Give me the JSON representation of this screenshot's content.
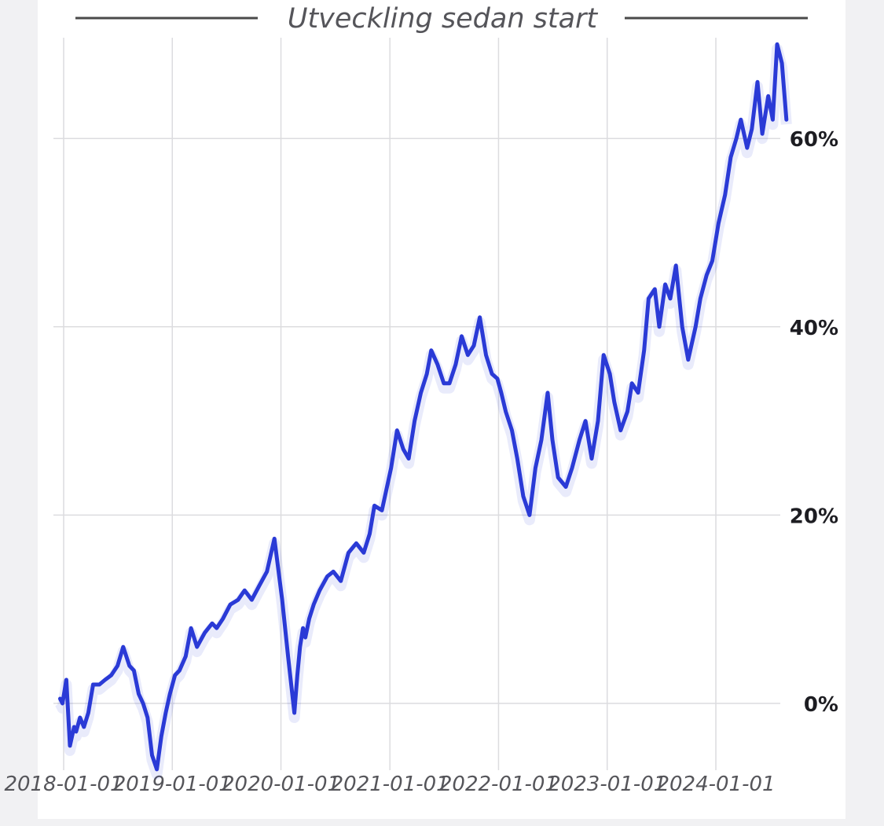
{
  "chart_data": {
    "type": "line",
    "title": "Utveckling sedan start",
    "x_tick_labels": [
      "2018-01-01",
      "2019-01-01",
      "2020-01-01",
      "2021-01-01",
      "2022-01-01",
      "2023-01-01",
      "2024-01-01"
    ],
    "y_tick_labels": [
      "0%",
      "20%",
      "40%",
      "60%"
    ],
    "y_ticks": [
      0,
      20,
      40,
      60
    ],
    "ylim": [
      -7,
      71
    ],
    "xlim": [
      "2017-12-20",
      "2024-09-15"
    ],
    "grid": true,
    "colors": {
      "line": "#2a3ad6",
      "grid": "#dcdcdf"
    },
    "series": [
      {
        "x": [
          "2017-12-20",
          "2017-12-28",
          "2018-01-10",
          "2018-01-22",
          "2018-02-05",
          "2018-02-12",
          "2018-02-25",
          "2018-03-10",
          "2018-03-25",
          "2018-04-10",
          "2018-05-01",
          "2018-05-20",
          "2018-06-10",
          "2018-07-01",
          "2018-07-20",
          "2018-08-10",
          "2018-08-25",
          "2018-09-10",
          "2018-09-25",
          "2018-10-10",
          "2018-10-25",
          "2018-11-10",
          "2018-11-25",
          "2018-12-10",
          "2018-12-24",
          "2019-01-10",
          "2019-01-25",
          "2019-02-15",
          "2019-03-05",
          "2019-03-25",
          "2019-04-20",
          "2019-05-15",
          "2019-05-30",
          "2019-06-20",
          "2019-07-15",
          "2019-08-10",
          "2019-09-01",
          "2019-09-25",
          "2019-10-20",
          "2019-11-15",
          "2019-12-10",
          "2020-01-05",
          "2020-01-25",
          "2020-02-15",
          "2020-02-25",
          "2020-03-05",
          "2020-03-15",
          "2020-03-23",
          "2020-04-05",
          "2020-04-20",
          "2020-05-10",
          "2020-06-05",
          "2020-06-25",
          "2020-07-20",
          "2020-08-15",
          "2020-09-10",
          "2020-10-05",
          "2020-10-25",
          "2020-11-10",
          "2020-12-05",
          "2021-01-05",
          "2021-01-25",
          "2021-02-15",
          "2021-03-05",
          "2021-03-25",
          "2021-04-15",
          "2021-05-05",
          "2021-05-20",
          "2021-06-10",
          "2021-07-01",
          "2021-07-20",
          "2021-08-10",
          "2021-08-30",
          "2021-09-20",
          "2021-10-10",
          "2021-10-30",
          "2021-11-20",
          "2021-12-10",
          "2021-12-28",
          "2022-01-10",
          "2022-01-25",
          "2022-02-15",
          "2022-03-05",
          "2022-03-25",
          "2022-04-15",
          "2022-05-05",
          "2022-05-25",
          "2022-06-15",
          "2022-07-01",
          "2022-07-20",
          "2022-08-15",
          "2022-09-05",
          "2022-09-30",
          "2022-10-20",
          "2022-11-10",
          "2022-12-01",
          "2022-12-20",
          "2023-01-10",
          "2023-01-25",
          "2023-02-15",
          "2023-03-10",
          "2023-03-25",
          "2023-04-15",
          "2023-05-05",
          "2023-05-20",
          "2023-06-10",
          "2023-06-25",
          "2023-07-15",
          "2023-08-01",
          "2023-08-20",
          "2023-09-10",
          "2023-09-30",
          "2023-10-25",
          "2023-11-10",
          "2023-12-01",
          "2023-12-20",
          "2024-01-10",
          "2024-02-01",
          "2024-02-20",
          "2024-03-10",
          "2024-03-25",
          "2024-04-15",
          "2024-05-01",
          "2024-05-20",
          "2024-06-05",
          "2024-06-25",
          "2024-07-10",
          "2024-07-25",
          "2024-08-10",
          "2024-08-25"
        ],
        "y": [
          0.5,
          0.0,
          2.5,
          -4.5,
          -2.5,
          -3.0,
          -1.5,
          -2.5,
          -1.0,
          2.0,
          2.0,
          2.5,
          3.0,
          4.0,
          6.0,
          4.0,
          3.5,
          1.0,
          0.0,
          -1.5,
          -5.5,
          -7.0,
          -3.5,
          -1.0,
          1.0,
          3.0,
          3.5,
          5.0,
          8.0,
          6.0,
          7.5,
          8.5,
          8.0,
          9.0,
          10.5,
          11.0,
          12.0,
          11.0,
          12.5,
          14.0,
          17.5,
          11.0,
          5.0,
          -1.0,
          3.0,
          6.0,
          8.0,
          7.0,
          9.0,
          10.5,
          12.0,
          13.5,
          14.0,
          13.0,
          16.0,
          17.0,
          16.0,
          18.0,
          21.0,
          20.5,
          25.0,
          29.0,
          27.0,
          26.0,
          30.0,
          33.0,
          35.0,
          37.5,
          36.0,
          34.0,
          34.0,
          36.0,
          39.0,
          37.0,
          38.0,
          41.0,
          37.0,
          35.0,
          34.5,
          33.0,
          31.0,
          29.0,
          26.0,
          22.0,
          20.0,
          25.0,
          28.0,
          33.0,
          28.0,
          24.0,
          23.0,
          25.0,
          28.0,
          30.0,
          26.0,
          30.0,
          37.0,
          35.0,
          32.0,
          29.0,
          31.0,
          34.0,
          33.0,
          37.5,
          43.0,
          44.0,
          40.0,
          44.5,
          43.0,
          46.5,
          40.0,
          36.5,
          40.0,
          43.0,
          45.5,
          47.0,
          51.0,
          54.0,
          58.0,
          60.0,
          62.0,
          59.0,
          61.0,
          66.0,
          60.5,
          64.5,
          62.0,
          70.0,
          68.0,
          62.0
        ]
      }
    ]
  }
}
